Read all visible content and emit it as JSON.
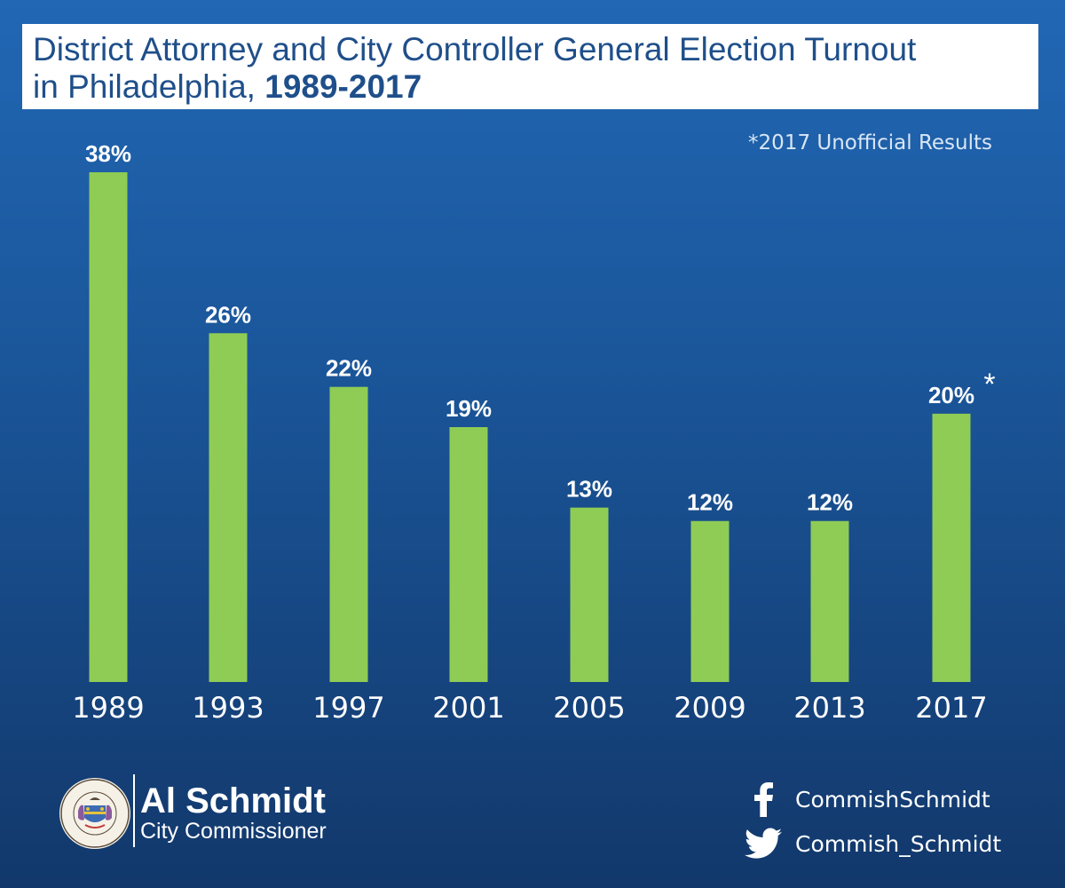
{
  "title": {
    "line1": "District Attorney and City Controller General Election Turnout",
    "line2_prefix": "in Philadelphia, ",
    "line2_bold": "1989-2017"
  },
  "note": "*2017 Unofficial Results",
  "chart_data": {
    "type": "bar",
    "title": "District Attorney and City Controller General Election Turnout in Philadelphia, 1989-2017",
    "categories": [
      "1989",
      "1993",
      "1997",
      "2001",
      "2005",
      "2009",
      "2013",
      "2017"
    ],
    "values": [
      38,
      26,
      22,
      19,
      13,
      12,
      12,
      20
    ],
    "data_labels": [
      "38%",
      "26%",
      "22%",
      "19%",
      "13%",
      "12%",
      "12%",
      "20%"
    ],
    "annotations": [
      {
        "category": "2017",
        "text": "*"
      }
    ],
    "ylim": [
      0,
      38
    ],
    "xlabel": "",
    "ylabel": "",
    "grid": false,
    "colors": {
      "bar": "#8fcc55",
      "label": "#ffffff",
      "tick": "#ffffff"
    }
  },
  "footer": {
    "name": "Al Schmidt",
    "role": "City Commissioner",
    "seal_text": "SEAL OF THE CITY OF PHILADELPHIA",
    "social": [
      {
        "icon": "facebook-icon",
        "handle": "CommishSchmidt"
      },
      {
        "icon": "twitter-icon",
        "handle": "Commish_Schmidt"
      }
    ]
  }
}
